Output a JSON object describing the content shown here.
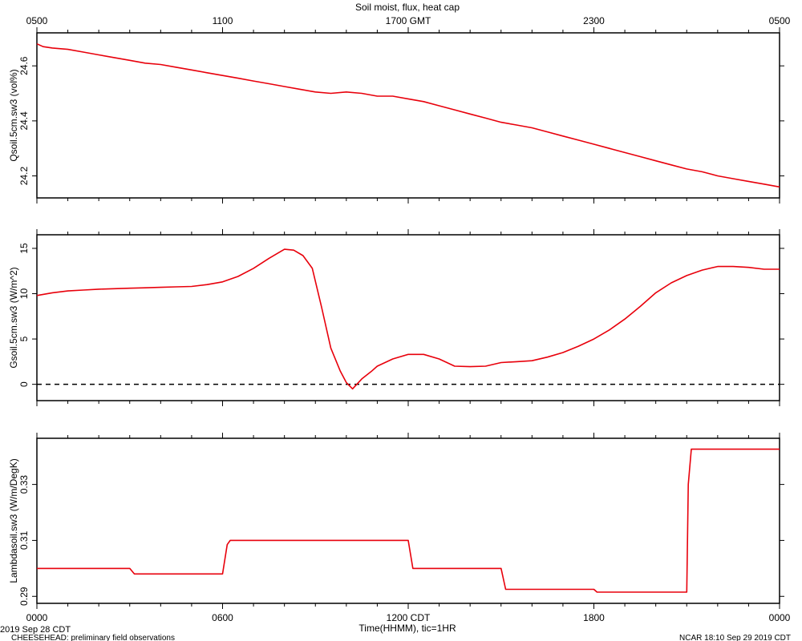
{
  "header": {
    "title": "Soil moist, flux, heat cap",
    "top_ticks": [
      "0500",
      "1100",
      "1700 GMT",
      "2300",
      "0500"
    ]
  },
  "footer": {
    "xlabel": "Time(HHMM), tic=1HR",
    "date_left": "2019 Sep 28 CDT",
    "project": "CHEESEHEAD: preliminary field observations",
    "stamp": "NCAR 18:10 Sep 29 2019 CDT",
    "bottom_ticks": [
      "0000",
      "0600",
      "1200 CDT",
      "1800",
      "0000"
    ]
  },
  "colors": {
    "series": "#e8000b",
    "axis": "#000000",
    "background": "#ffffff"
  },
  "chart_data": [
    {
      "type": "line",
      "ylabel": "Qsoil.5cm.sw3 (vol%)",
      "xlim": [
        0,
        24
      ],
      "ylim": [
        24.12,
        24.72
      ],
      "yticks": [
        24.2,
        24.4,
        24.6
      ],
      "ytick_labels": [
        "24.2",
        "24.4",
        "24.6"
      ],
      "zero_line": false,
      "series": [
        {
          "x": [
            0,
            0.2,
            0.5,
            1,
            1.5,
            2,
            2.5,
            3,
            3.5,
            4,
            4.5,
            5,
            5.5,
            6,
            6.5,
            7,
            7.5,
            8,
            8.5,
            9,
            9.5,
            10,
            10.5,
            11,
            11.5,
            12,
            12.5,
            13,
            13.5,
            14,
            14.5,
            15,
            15.5,
            16,
            16.5,
            17,
            17.5,
            18,
            18.5,
            19,
            19.5,
            20,
            20.5,
            21,
            21.5,
            22,
            22.5,
            23,
            23.5,
            24
          ],
          "y": [
            24.68,
            24.67,
            24.665,
            24.66,
            24.65,
            24.64,
            24.63,
            24.62,
            24.61,
            24.605,
            24.595,
            24.585,
            24.575,
            24.565,
            24.555,
            24.545,
            24.535,
            24.525,
            24.515,
            24.505,
            24.5,
            24.505,
            24.5,
            24.49,
            24.49,
            24.48,
            24.47,
            24.455,
            24.44,
            24.425,
            24.41,
            24.395,
            24.385,
            24.375,
            24.36,
            24.345,
            24.33,
            24.315,
            24.3,
            24.285,
            24.27,
            24.255,
            24.24,
            24.225,
            24.215,
            24.2,
            24.19,
            24.18,
            24.17,
            24.16
          ]
        }
      ]
    },
    {
      "type": "line",
      "ylabel": "Gsoil.5cm.sw3 (W/m^2)",
      "xlim": [
        0,
        24
      ],
      "ylim": [
        -1.8,
        16.5
      ],
      "yticks": [
        0,
        5,
        10,
        15
      ],
      "ytick_labels": [
        "0",
        "5",
        "10",
        "15"
      ],
      "zero_line": true,
      "series": [
        {
          "x": [
            0,
            0.5,
            1,
            1.5,
            2,
            2.5,
            3,
            3.5,
            4,
            4.5,
            5,
            5.5,
            6,
            6.5,
            7,
            7.5,
            8,
            8.3,
            8.6,
            8.9,
            9.2,
            9.5,
            9.8,
            10,
            10.2,
            10.5,
            10.8,
            11,
            11.5,
            12,
            12.5,
            13,
            13.5,
            14,
            14.5,
            15,
            15.5,
            16,
            16.5,
            17,
            17.5,
            18,
            18.5,
            19,
            19.5,
            20,
            20.5,
            21,
            21.5,
            22,
            22.5,
            23,
            23.5,
            24
          ],
          "y": [
            9.8,
            10.1,
            10.3,
            10.4,
            10.5,
            10.55,
            10.6,
            10.65,
            10.7,
            10.75,
            10.8,
            11.0,
            11.3,
            11.9,
            12.8,
            13.9,
            14.9,
            14.8,
            14.2,
            12.8,
            8.5,
            4.0,
            1.5,
            0.2,
            -0.5,
            0.6,
            1.4,
            2.0,
            2.8,
            3.3,
            3.3,
            2.8,
            2.0,
            1.95,
            2.0,
            2.4,
            2.5,
            2.6,
            3.0,
            3.5,
            4.2,
            5.0,
            6.0,
            7.2,
            8.6,
            10.1,
            11.2,
            12.0,
            12.6,
            13.0,
            13.0,
            12.9,
            12.7,
            12.7
          ]
        }
      ]
    },
    {
      "type": "line",
      "ylabel": "Lambdasoil.sw3 (W/m/DegK)",
      "xlim": [
        0,
        24
      ],
      "ylim": [
        0.2875,
        0.3465
      ],
      "yticks": [
        0.29,
        0.31,
        0.33
      ],
      "ytick_labels": [
        "0.29",
        "0.31",
        "0.33"
      ],
      "zero_line": false,
      "series": [
        {
          "x": [
            0,
            3.0,
            3.15,
            6.0,
            6.15,
            6.25,
            12.0,
            12.15,
            15.0,
            15.15,
            18.0,
            18.1,
            21.0,
            21.05,
            21.15,
            24
          ],
          "y": [
            0.3,
            0.3,
            0.298,
            0.298,
            0.3085,
            0.31,
            0.31,
            0.3,
            0.3,
            0.2925,
            0.2925,
            0.2915,
            0.2915,
            0.33,
            0.3426,
            0.3426
          ]
        }
      ]
    }
  ]
}
